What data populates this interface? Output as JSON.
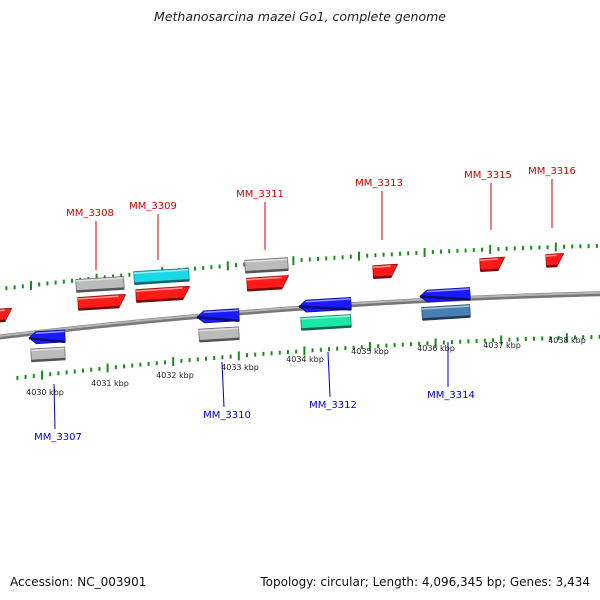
{
  "title": "Methanosarcina mazei Go1, complete genome",
  "accession": "Accession: NC_003901",
  "summary": "Topology: circular; Length: 4,096,345 bp; Genes: 3,434",
  "colors": {
    "forward_label": "#cc0000",
    "reverse_label": "#0000cc",
    "tick": "#1a8a1a",
    "backbone": "#888888",
    "red": "#ff1a1a",
    "blue": "#1a1aff",
    "gray": "#bbbbbb",
    "cyan": "#1ad9e6",
    "teal": "#1ae6a6",
    "steel": "#4a7fb3"
  },
  "ticks": [
    {
      "label": "4030 kbp"
    },
    {
      "label": "4031 kbp"
    },
    {
      "label": "4032 kbp"
    },
    {
      "label": "4033 kbp"
    },
    {
      "label": "4034 kbp"
    },
    {
      "label": "4035 kbp"
    },
    {
      "label": "4036 kbp"
    },
    {
      "label": "4037 kbp"
    },
    {
      "label": "4038 kbp"
    }
  ],
  "forward_labels": [
    {
      "text": "MM_3308"
    },
    {
      "text": "MM_3309"
    },
    {
      "text": "MM_3311"
    },
    {
      "text": "MM_3313"
    },
    {
      "text": "MM_3315"
    },
    {
      "text": "MM_3316"
    }
  ],
  "reverse_labels": [
    {
      "text": "MM_3307"
    },
    {
      "text": "MM_3310"
    },
    {
      "text": "MM_3312"
    },
    {
      "text": "MM_3314"
    }
  ]
}
